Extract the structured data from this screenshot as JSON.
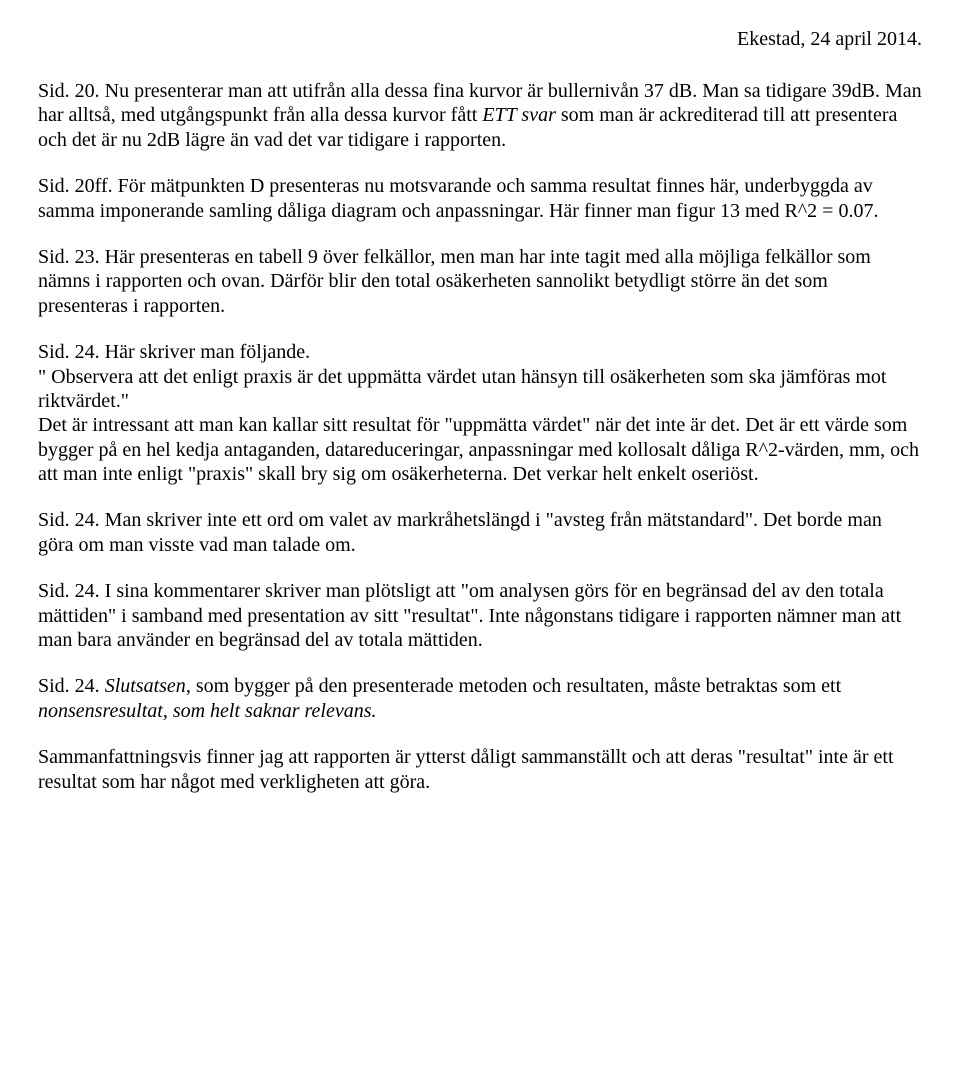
{
  "header": {
    "date": "Ekestad, 24 april 2014."
  },
  "paragraphs": {
    "p1a": "Sid. 20. Nu presenterar man att utifrån alla dessa fina kurvor är bullernivån 37 dB. Man sa tidigare 39dB. Man har alltså, med utgångspunkt från alla dessa kurvor fått ",
    "p1b": "ETT svar",
    "p1c": " som man är ackrediterad till att presentera och det är nu 2dB lägre än vad det var tidigare i rapporten.",
    "p2": "Sid. 20ff. För mätpunkten D presenteras nu motsvarande och samma resultat finnes här, underbyggda av samma imponerande samling dåliga diagram och anpassningar. Här finner man figur 13 med R^2 = 0.07.",
    "p3": "Sid. 23. Här presenteras en tabell 9 över felkällor, men man har inte tagit med alla möjliga felkällor som nämns i rapporten och ovan. Därför blir den total osäkerheten sannolikt betydligt större än det som presenteras i rapporten.",
    "p4": "Sid. 24. Här skriver man följande.\n\" Observera att det enligt praxis är det uppmätta värdet utan hänsyn till osäkerheten som ska jämföras mot riktvärdet.\"\nDet är intressant att man kan kallar sitt resultat för \"uppmätta värdet\" när det inte är det. Det är ett värde som bygger på en hel kedja antaganden, datareduceringar, anpassningar med kollosalt dåliga R^2-värden, mm, och att man inte enligt \"praxis\" skall bry sig om osäkerheterna. Det verkar helt enkelt oseriöst.",
    "p5": "Sid. 24. Man skriver inte ett ord om valet av markråhetslängd i \"avsteg från mätstandard\". Det borde man göra om man visste vad man talade om.",
    "p6": "Sid. 24. I sina kommentarer skriver man plötsligt att \"om analysen görs för en begränsad del av den totala mättiden\" i samband med presentation av sitt \"resultat\". Inte någonstans tidigare i rapporten nämner man att man bara använder en begränsad del av totala mättiden.",
    "p7a": "Sid. 24. ",
    "p7b": "Slutsatsen",
    "p7c": ", som bygger på den presenterade metoden och resultaten, måste betraktas som ett ",
    "p7d": "nonsensresultat, som helt saknar relevans.",
    "p8": " Sammanfattningsvis finner jag att rapporten är ytterst dåligt sammanställt och att deras \"resultat\" inte är ett resultat som har något med verkligheten att göra."
  }
}
